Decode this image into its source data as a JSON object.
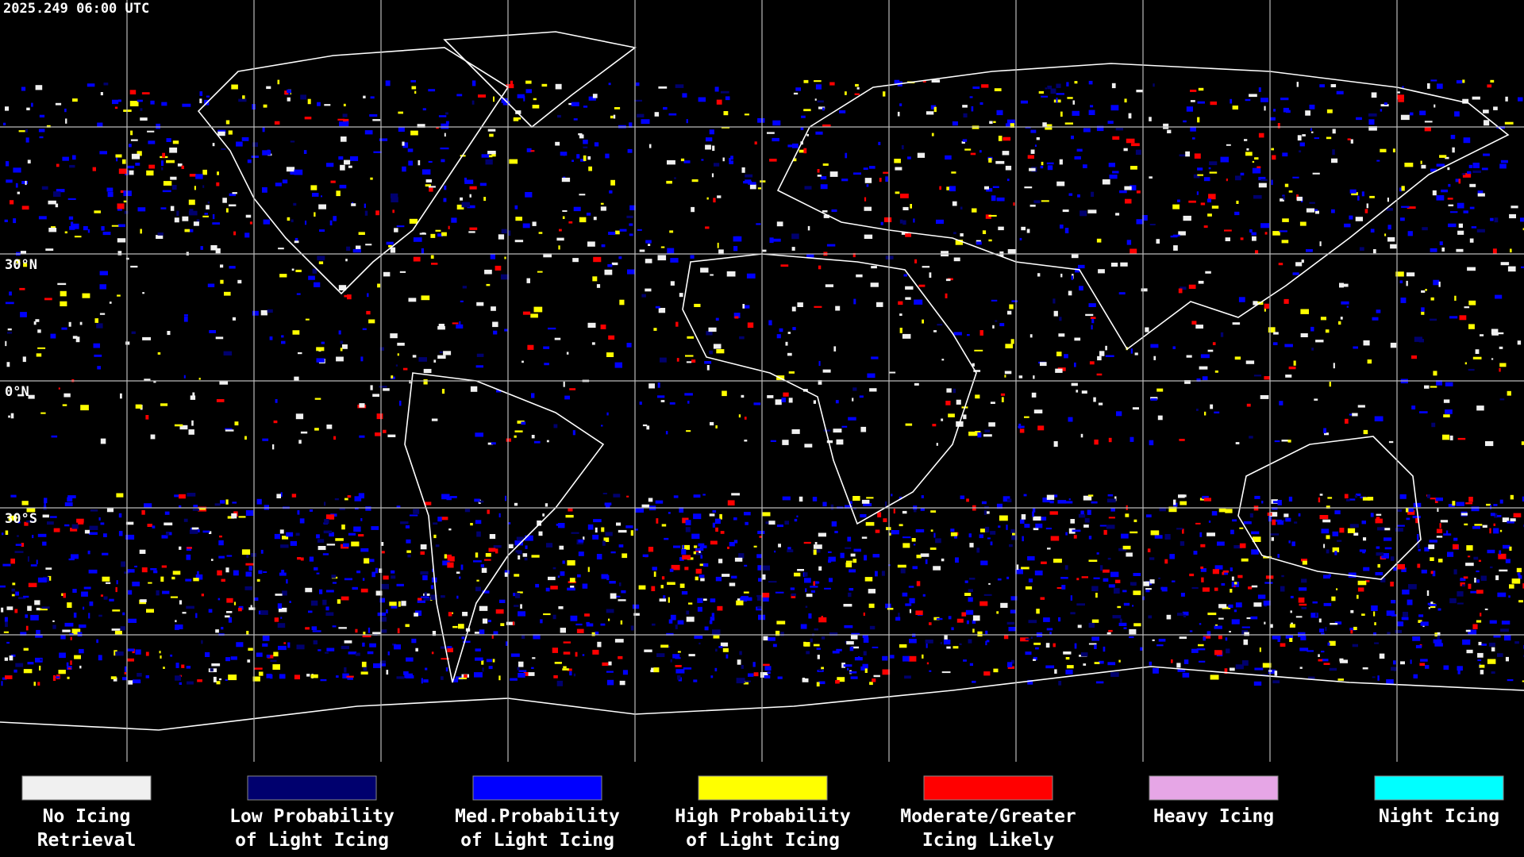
{
  "timestamp": "2025.249 06:00 UTC",
  "latitude_labels": [
    "30°N",
    "0°N",
    "30°S"
  ],
  "legend": [
    {
      "lines": [
        "No Icing",
        "Retrieval"
      ],
      "color": "#f0f0f0"
    },
    {
      "lines": [
        "Low Probability",
        "of Light Icing"
      ],
      "color": "#00006e"
    },
    {
      "lines": [
        "Med.Probability",
        "of Light Icing"
      ],
      "color": "#0000ff"
    },
    {
      "lines": [
        "High Probability",
        "of Light Icing"
      ],
      "color": "#ffff00"
    },
    {
      "lines": [
        "Moderate/Greater",
        "Icing Likely"
      ],
      "color": "#ff0000"
    },
    {
      "lines": [
        "Heavy Icing"
      ],
      "color": "#e6a6e6"
    },
    {
      "lines": [
        "Night Icing"
      ],
      "color": "#00ffff"
    }
  ]
}
